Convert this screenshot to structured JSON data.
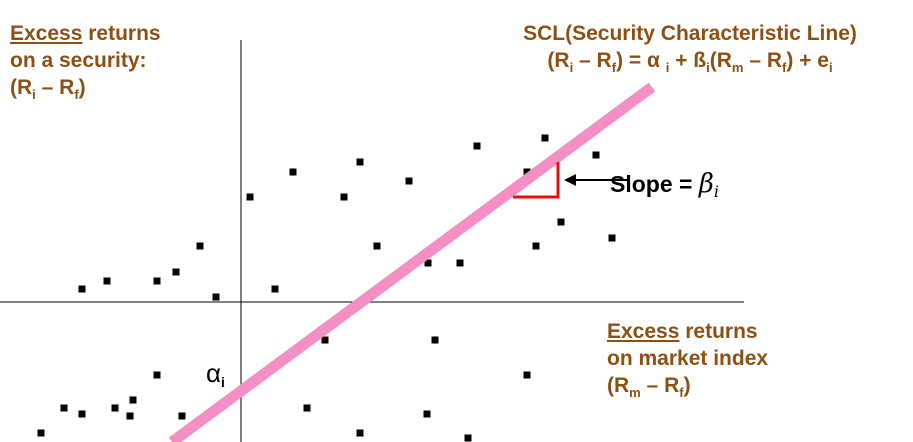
{
  "y_axis_label": {
    "underlined": "Excess",
    "line1_rest": " returns",
    "line2": "on a security:",
    "line3": "(R",
    "sub1": "i",
    "mid": " – R",
    "sub2": "f",
    "end": ")"
  },
  "x_axis_label": {
    "underlined": "Excess",
    "line1_rest": " returns",
    "line2": "on market index",
    "line3": "(R",
    "sub1": "m",
    "mid": " – R",
    "sub2": "f",
    "end": ")"
  },
  "scl_label": {
    "title": "SCL(Security Characteristic Line)",
    "eq_a": "(R",
    "eq_sub_i1": "i",
    "eq_b": " – R",
    "eq_sub_f1": "f",
    "eq_c": ") = α ",
    "eq_sub_i2": "i",
    "eq_d": " + ß",
    "eq_sub_i3": "i",
    "eq_e": "(R",
    "eq_sub_m": "m",
    "eq_f": " – R",
    "eq_sub_f2": "f",
    "eq_g": ") + e",
    "eq_sub_i4": "i"
  },
  "slope_label": {
    "text": "Slope = ",
    "symbol": "β",
    "sub": "i"
  },
  "alpha_label": {
    "symbol": "α",
    "sub": "i"
  },
  "colors": {
    "label_brown": "#8c5014",
    "scl_line": "#f48fc4",
    "slope_marker": "#e01010",
    "points": "#000000",
    "axes": "#000000"
  }
}
